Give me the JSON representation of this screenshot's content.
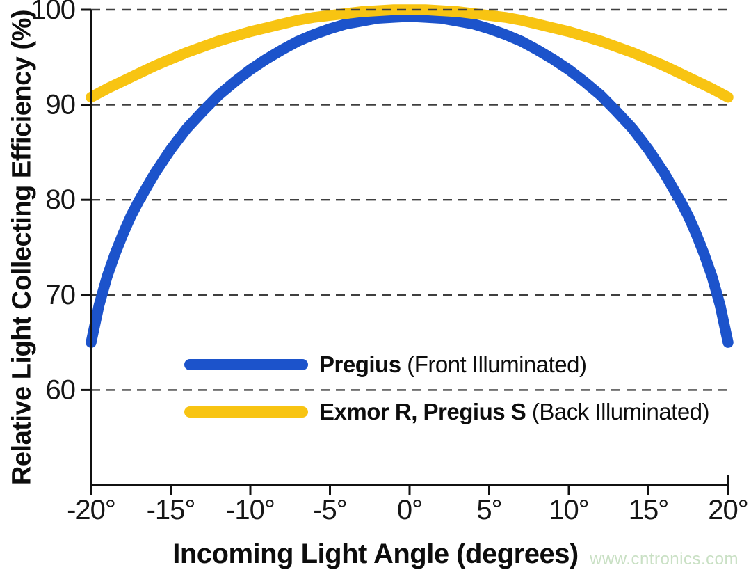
{
  "chart_data": {
    "type": "line",
    "title": "",
    "xlabel": "Incoming Light Angle (degrees)",
    "ylabel": "Relative Light Collecting Efficiency (%)",
    "xlim": [
      -20,
      20
    ],
    "ylim": [
      50,
      100
    ],
    "grid": "dashed horizontal",
    "gridlines_y": [
      100,
      90,
      80,
      70,
      60
    ],
    "x_ticks": [
      {
        "deg": -20,
        "label": "-20°"
      },
      {
        "deg": -15,
        "label": "-15°"
      },
      {
        "deg": -10,
        "label": "-10°"
      },
      {
        "deg": -5,
        "label": "-5°"
      },
      {
        "deg": 0,
        "label": "0°"
      },
      {
        "deg": 5,
        "label": "5°"
      },
      {
        "deg": 10,
        "label": "10°"
      },
      {
        "deg": 15,
        "label": "15°"
      },
      {
        "deg": 20,
        "label": "20°"
      }
    ],
    "y_ticks": [
      {
        "value": 100,
        "label": "100"
      },
      {
        "value": 90,
        "label": "90"
      },
      {
        "value": 80,
        "label": "80"
      },
      {
        "value": 70,
        "label": "70"
      },
      {
        "value": 60,
        "label": "60"
      }
    ],
    "series": [
      {
        "name": "Pregius (Front Illuminated)",
        "color": "#1c53cb",
        "x": [
          -20,
          -19.5,
          -19,
          -18.5,
          -18,
          -17.5,
          -17,
          -16,
          -15,
          -14,
          -13,
          -12,
          -11,
          -10,
          -9,
          -8,
          -7,
          -6,
          -5,
          -4,
          -3,
          -2,
          -1,
          0,
          1,
          2,
          3,
          4,
          5,
          6,
          7,
          8,
          9,
          10,
          11,
          12,
          13,
          14,
          15,
          16,
          17,
          17.5,
          18,
          18.5,
          19,
          19.5,
          20
        ],
        "values": [
          65.0,
          68.9,
          71.9,
          74.3,
          76.4,
          78.3,
          79.9,
          82.8,
          85.3,
          87.5,
          89.3,
          91.0,
          92.4,
          93.7,
          94.8,
          95.8,
          96.7,
          97.4,
          98.0,
          98.5,
          98.8,
          99.1,
          99.2,
          99.3,
          99.2,
          99.1,
          98.8,
          98.5,
          98.0,
          97.4,
          96.7,
          95.8,
          94.8,
          93.7,
          92.4,
          91.0,
          89.3,
          87.5,
          85.3,
          82.8,
          79.9,
          78.3,
          76.4,
          74.3,
          71.9,
          68.9,
          65.0
        ]
      },
      {
        "name": "Exmor R, Pregius S (Back Illuminated)",
        "color": "#f8c412",
        "x": [
          -20,
          -19,
          -18,
          -17,
          -16,
          -15,
          -14,
          -13,
          -12,
          -11,
          -10,
          -9,
          -8,
          -7,
          -6,
          -5,
          -4,
          -3,
          -2,
          -1,
          0,
          1,
          2,
          3,
          4,
          5,
          6,
          7,
          8,
          9,
          10,
          11,
          12,
          13,
          14,
          15,
          16,
          17,
          18,
          19,
          20
        ],
        "values": [
          90.8,
          91.7,
          92.5,
          93.3,
          94.1,
          94.8,
          95.5,
          96.1,
          96.7,
          97.2,
          97.7,
          98.1,
          98.5,
          98.9,
          99.2,
          99.4,
          99.6,
          99.8,
          99.9,
          100.0,
          100.0,
          100.0,
          99.9,
          99.8,
          99.6,
          99.4,
          99.2,
          98.9,
          98.5,
          98.1,
          97.7,
          97.2,
          96.7,
          96.1,
          95.5,
          94.8,
          94.1,
          93.3,
          92.5,
          91.7,
          90.8
        ]
      }
    ],
    "legend": [
      {
        "bold": "Pregius",
        "rest": " (Front Illuminated)",
        "color": "#1c53cb"
      },
      {
        "bold": "Exmor R, Pregius S",
        "rest": " (Back Illuminated)",
        "color": "#f8c412"
      }
    ],
    "legend_position": "lower center inside plot"
  },
  "watermark": "www.cntronics.com"
}
